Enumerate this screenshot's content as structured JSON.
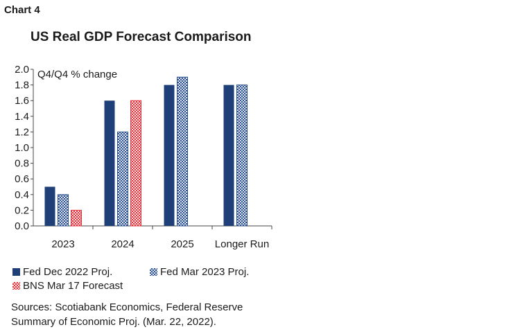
{
  "header": {
    "chart_number": "Chart 4",
    "title": "US Real GDP Forecast Comparison"
  },
  "sources": {
    "line1": "Sources: Scotiabank Economics, Federal Reserve",
    "line2": "Summary of Economic Proj. (Mar. 22, 2022)."
  },
  "chart_data": {
    "type": "bar",
    "title": "US Real GDP Forecast Comparison",
    "ylabel": "Q4/Q4 % change",
    "xlabel": "",
    "ylim": [
      0,
      2.0
    ],
    "yticks": [
      "0.0",
      "0.2",
      "0.4",
      "0.6",
      "0.8",
      "1.0",
      "1.2",
      "1.4",
      "1.6",
      "1.8",
      "2.0"
    ],
    "categories": [
      "2023",
      "2024",
      "2025",
      "Longer Run"
    ],
    "series": [
      {
        "name": "Fed Dec 2022 Proj.",
        "values": [
          0.5,
          1.6,
          1.8,
          1.8
        ],
        "color": "#1f3f78",
        "pattern": "solid"
      },
      {
        "name": "Fed Mar 2023 Proj.",
        "values": [
          0.4,
          1.2,
          1.9,
          1.8
        ],
        "color": "#2a4f8f",
        "pattern": "checker"
      },
      {
        "name": "BNS Mar 17 Forecast",
        "values": [
          0.2,
          1.6,
          null,
          null
        ],
        "color": "#e0303a",
        "pattern": "checker"
      }
    ],
    "legend_position": "bottom",
    "grid": false
  }
}
